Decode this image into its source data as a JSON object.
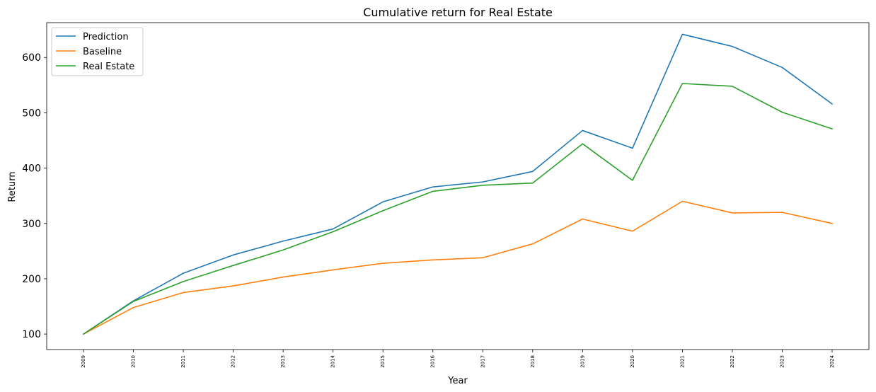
{
  "chart_data": {
    "type": "line",
    "title": "Cumulative return for Real Estate",
    "xlabel": "Year",
    "ylabel": "Return",
    "categories": [
      "2009",
      "2010",
      "2011",
      "2012",
      "2013",
      "2014",
      "2015",
      "2016",
      "2017",
      "2018",
      "2019",
      "2020",
      "2021",
      "2022",
      "2023",
      "2024"
    ],
    "y_ticks": [
      100,
      200,
      300,
      400,
      500,
      600
    ],
    "ylim": [
      72,
      663
    ],
    "grid": false,
    "legend_position": "top-left",
    "series": [
      {
        "name": "Prediction",
        "color": "#1f77b4",
        "values": [
          100,
          160,
          210,
          243,
          268,
          290,
          339,
          366,
          375,
          394,
          468,
          436,
          642,
          620,
          582,
          516
        ]
      },
      {
        "name": "Baseline",
        "color": "#ff7f0e",
        "values": [
          100,
          148,
          175,
          187,
          203,
          216,
          228,
          234,
          238,
          263,
          308,
          286,
          340,
          319,
          320,
          300
        ]
      },
      {
        "name": "Real Estate",
        "color": "#2ca02c",
        "values": [
          100,
          159,
          195,
          224,
          252,
          285,
          323,
          358,
          369,
          373,
          444,
          378,
          553,
          548,
          501,
          471
        ]
      }
    ]
  }
}
